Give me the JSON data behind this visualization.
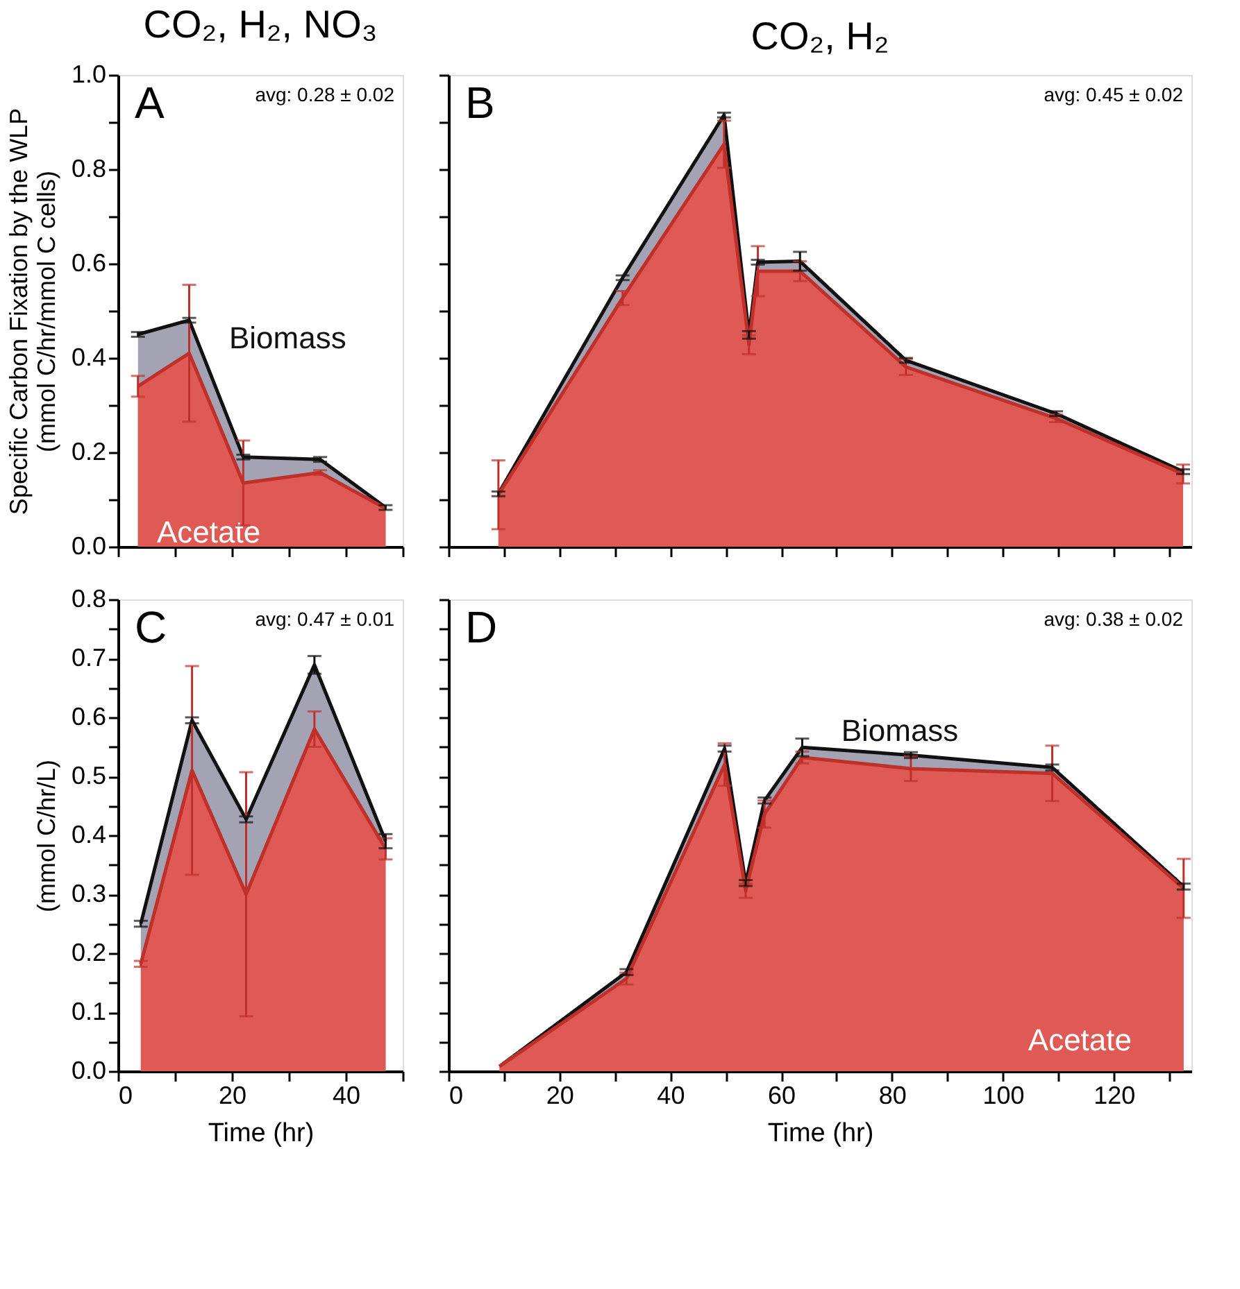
{
  "chart_data": [
    {
      "type": "area",
      "title": "CO₂, H₂, NO₃",
      "ylabel": "Specific Carbon Fixation by the WLP\n(mmol C/hr/mmol C cells)",
      "annotations": [
        "A",
        "avg: 0.28 ± 0.02"
      ],
      "x": [
        3.5,
        12.5,
        22,
        35.5,
        47
      ],
      "xlim": [
        0,
        50
      ],
      "ylim": [
        0,
        1.0
      ],
      "xticks": [
        {
          "value": 0,
          "label": null
        },
        {
          "value": 10,
          "label": null
        },
        {
          "value": 20,
          "label": null
        },
        {
          "value": 30,
          "label": null
        },
        {
          "value": 40,
          "label": null
        },
        {
          "value": 50,
          "label": null
        }
      ],
      "yticks": [
        {
          "value": 0,
          "label": "0.0"
        },
        {
          "value": 0.1,
          "label": null
        },
        {
          "value": 0.2,
          "label": "0.2"
        },
        {
          "value": 0.3,
          "label": null
        },
        {
          "value": 0.4,
          "label": "0.4"
        },
        {
          "value": 0.5,
          "label": null
        },
        {
          "value": 0.6,
          "label": "0.6"
        },
        {
          "value": 0.7,
          "label": null
        },
        {
          "value": 0.8,
          "label": "0.8"
        },
        {
          "value": 0.9,
          "label": null
        },
        {
          "value": 1.0,
          "label": "1.0"
        }
      ],
      "tick_labels": "y",
      "grid": false,
      "series": [
        {
          "name": "Biomass",
          "color": "#a3a3b4",
          "values": [
            0.45,
            0.48,
            0.19,
            0.185,
            0.083
          ],
          "errors": [
            0.005,
            0.005,
            0.005,
            0.005,
            0.005
          ]
        },
        {
          "name": "Acetate",
          "color": "#e05a55",
          "values": [
            0.34,
            0.41,
            0.135,
            0.157,
            0.081
          ],
          "errors": [
            0.022,
            0.145,
            0.09,
            0.005,
            null
          ]
        }
      ]
    },
    {
      "type": "area",
      "title": "CO₂, H₂",
      "annotations": [
        "B",
        "avg: 0.45 ± 0.02"
      ],
      "x": [
        9,
        31.4,
        49.7,
        54.2,
        55.8,
        63.4,
        82.5,
        109.6,
        132.5
      ],
      "xlim": [
        0,
        134
      ],
      "ylim": [
        0,
        1.0
      ],
      "xticks": [
        {
          "value": 0,
          "label": null
        },
        {
          "value": 10,
          "label": null
        },
        {
          "value": 20,
          "label": null
        },
        {
          "value": 30,
          "label": null
        },
        {
          "value": 40,
          "label": null
        },
        {
          "value": 50,
          "label": null
        },
        {
          "value": 60,
          "label": null
        },
        {
          "value": 70,
          "label": null
        },
        {
          "value": 80,
          "label": null
        },
        {
          "value": 90,
          "label": null
        },
        {
          "value": 100,
          "label": null
        },
        {
          "value": 110,
          "label": null
        },
        {
          "value": 120,
          "label": null
        },
        {
          "value": 130,
          "label": null
        }
      ],
      "yticks": [
        {
          "value": 0,
          "label": null
        },
        {
          "value": 0.1,
          "label": null
        },
        {
          "value": 0.2,
          "label": null
        },
        {
          "value": 0.3,
          "label": null
        },
        {
          "value": 0.4,
          "label": null
        },
        {
          "value": 0.5,
          "label": null
        },
        {
          "value": 0.6,
          "label": null
        },
        {
          "value": 0.7,
          "label": null
        },
        {
          "value": 0.8,
          "label": null
        },
        {
          "value": 0.9,
          "label": null
        },
        {
          "value": 1.0,
          "label": null
        }
      ],
      "tick_labels": false,
      "grid": false,
      "series": [
        {
          "color": "#a3a3b4",
          "values": [
            0.112,
            0.57,
            0.915,
            0.449,
            0.603,
            0.605,
            0.395,
            0.282,
            0.159
          ],
          "errors": [
            0.005,
            0.005,
            0.005,
            0.008,
            0.005,
            0.02,
            0.005,
            0.005,
            0.005
          ]
        },
        {
          "color": "#e05a55",
          "values": [
            0.11,
            0.527,
            0.853,
            0.428,
            0.584,
            0.584,
            0.381,
            0.272,
            0.154
          ],
          "errors": [
            0.073,
            0.015,
            0.05,
            0.02,
            0.053,
            0.021,
            0.017,
            0.008,
            0.02
          ]
        }
      ]
    },
    {
      "type": "area",
      "xlabel": "Time (hr)",
      "ylabel": "(mmol C/hr/L)",
      "annotations": [
        "C",
        "avg: 0.47 ± 0.01"
      ],
      "x": [
        4,
        13,
        22.5,
        34.5,
        47
      ],
      "xlim": [
        0,
        50
      ],
      "ylim": [
        0,
        0.8
      ],
      "xticks": [
        0,
        {
          "value": 10,
          "label": null
        },
        20,
        {
          "value": 30,
          "label": null
        },
        40,
        {
          "value": 50,
          "label": null
        }
      ],
      "yticks": [
        {
          "value": 0,
          "label": "0.0"
        },
        {
          "value": 0.05,
          "label": null
        },
        {
          "value": 0.1,
          "label": "0.1"
        },
        {
          "value": 0.15,
          "label": null
        },
        {
          "value": 0.2,
          "label": "0.2"
        },
        {
          "value": 0.25,
          "label": null
        },
        {
          "value": 0.3,
          "label": "0.3"
        },
        {
          "value": 0.35,
          "label": null
        },
        {
          "value": 0.4,
          "label": "0.4"
        },
        {
          "value": 0.45,
          "label": null
        },
        {
          "value": 0.5,
          "label": "0.5"
        },
        {
          "value": 0.55,
          "label": null
        },
        {
          "value": 0.6,
          "label": "0.6"
        },
        {
          "value": 0.65,
          "label": null
        },
        {
          "value": 0.7,
          "label": "0.7"
        },
        {
          "value": 0.75,
          "label": null
        },
        {
          "value": 0.8,
          "label": "0.8"
        }
      ],
      "grid": false,
      "series": [
        {
          "color": "#a3a3b4",
          "values": [
            0.25,
            0.595,
            0.427,
            0.689,
            0.39
          ],
          "errors": [
            0.005,
            0.005,
            0.005,
            0.015,
            0.012
          ]
        },
        {
          "color": "#e05a55",
          "values": [
            0.182,
            0.51,
            0.3,
            0.58,
            0.377
          ],
          "errors": [
            0.005,
            0.177,
            0.207,
            0.03,
            0.018
          ]
        }
      ]
    },
    {
      "type": "area",
      "xlabel": "Time (hr)",
      "annotations": [
        "D",
        "avg: 0.38 ± 0.02"
      ],
      "x": [
        9.2,
        32.1,
        49.8,
        53.6,
        57,
        63.8,
        83.4,
        108.9,
        132.6
      ],
      "xlim": [
        0,
        134
      ],
      "ylim": [
        0,
        0.8
      ],
      "xticks": [
        0,
        {
          "value": 10,
          "label": null
        },
        20,
        {
          "value": 30,
          "label": null
        },
        40,
        {
          "value": 50,
          "label": null
        },
        60,
        {
          "value": 70,
          "label": null
        },
        80,
        {
          "value": 90,
          "label": null
        },
        100,
        {
          "value": 110,
          "label": null
        },
        120,
        {
          "value": 130,
          "label": null
        }
      ],
      "yticks": [
        {
          "value": 0,
          "label": null
        },
        {
          "value": 0.05,
          "label": null
        },
        {
          "value": 0.1,
          "label": null
        },
        {
          "value": 0.15,
          "label": null
        },
        {
          "value": 0.2,
          "label": null
        },
        {
          "value": 0.25,
          "label": null
        },
        {
          "value": 0.3,
          "label": null
        },
        {
          "value": 0.35,
          "label": null
        },
        {
          "value": 0.4,
          "label": null
        },
        {
          "value": 0.45,
          "label": null
        },
        {
          "value": 0.5,
          "label": null
        },
        {
          "value": 0.55,
          "label": null
        },
        {
          "value": 0.6,
          "label": null
        },
        {
          "value": 0.65,
          "label": null
        },
        {
          "value": 0.7,
          "label": null
        },
        {
          "value": 0.75,
          "label": null
        },
        {
          "value": 0.8,
          "label": null
        }
      ],
      "tick_labels": "x",
      "grid": false,
      "series": [
        {
          "name": "Biomass",
          "color": "#a3a3b4",
          "values": [
            0.008,
            0.168,
            0.547,
            0.319,
            0.459,
            0.549,
            0.536,
            0.515,
            0.313
          ],
          "errors": [
            null,
            0.005,
            0.005,
            0.005,
            0.005,
            0.015,
            0.005,
            0.005,
            0.005
          ]
        },
        {
          "name": "Acetate",
          "color": "#e05a55",
          "values": [
            0.008,
            0.157,
            0.52,
            0.306,
            0.436,
            0.532,
            0.513,
            0.505,
            0.31
          ],
          "errors": [
            null,
            0.01,
            0.036,
            0.012,
            0.023,
            0.01,
            0.021,
            0.047,
            0.05
          ]
        }
      ]
    }
  ]
}
